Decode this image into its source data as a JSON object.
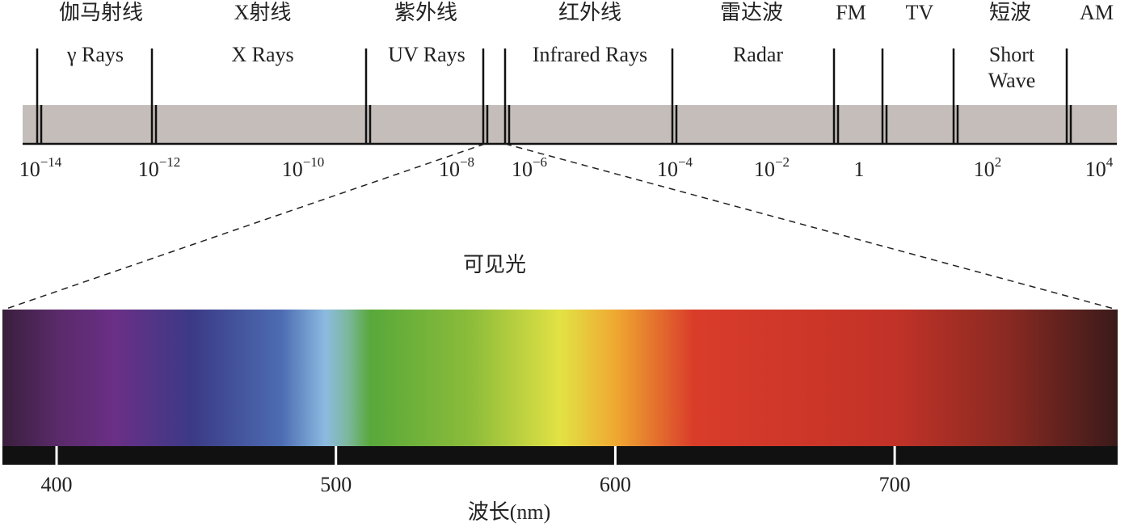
{
  "bands": [
    {
      "name": "伽马射线",
      "label": [
        "γ Rays"
      ]
    },
    {
      "name": "X射线",
      "label": [
        "X Rays"
      ]
    },
    {
      "name": "紫外线",
      "label": [
        "UV Rays"
      ]
    },
    {
      "name": "红外线",
      "label": [
        "Infrared Rays"
      ]
    },
    {
      "name": "雷达波",
      "label": [
        "Radar"
      ]
    },
    {
      "name": "FM"
    },
    {
      "name": "TV"
    },
    {
      "name": "短波",
      "label": [
        "Short",
        "Wave"
      ]
    },
    {
      "name": "AM"
    }
  ],
  "scale": [
    {
      "base": "10",
      "exponent": "−14"
    },
    {
      "base": "10",
      "exponent": "−12"
    },
    {
      "base": "10",
      "exponent": "−10"
    },
    {
      "base": "10",
      "exponent": "−8"
    },
    {
      "base": "10",
      "exponent": "−6"
    },
    {
      "base": "10",
      "exponent": "−4"
    },
    {
      "base": "10",
      "exponent": "−2"
    },
    {
      "base": "1"
    },
    {
      "base": "10",
      "exponent": "2"
    },
    {
      "base": "10",
      "exponent": "4"
    }
  ],
  "visible": {
    "title": "可见光",
    "ticks": [
      400,
      500,
      600,
      700
    ],
    "axis_label": "波长(nm)"
  }
}
